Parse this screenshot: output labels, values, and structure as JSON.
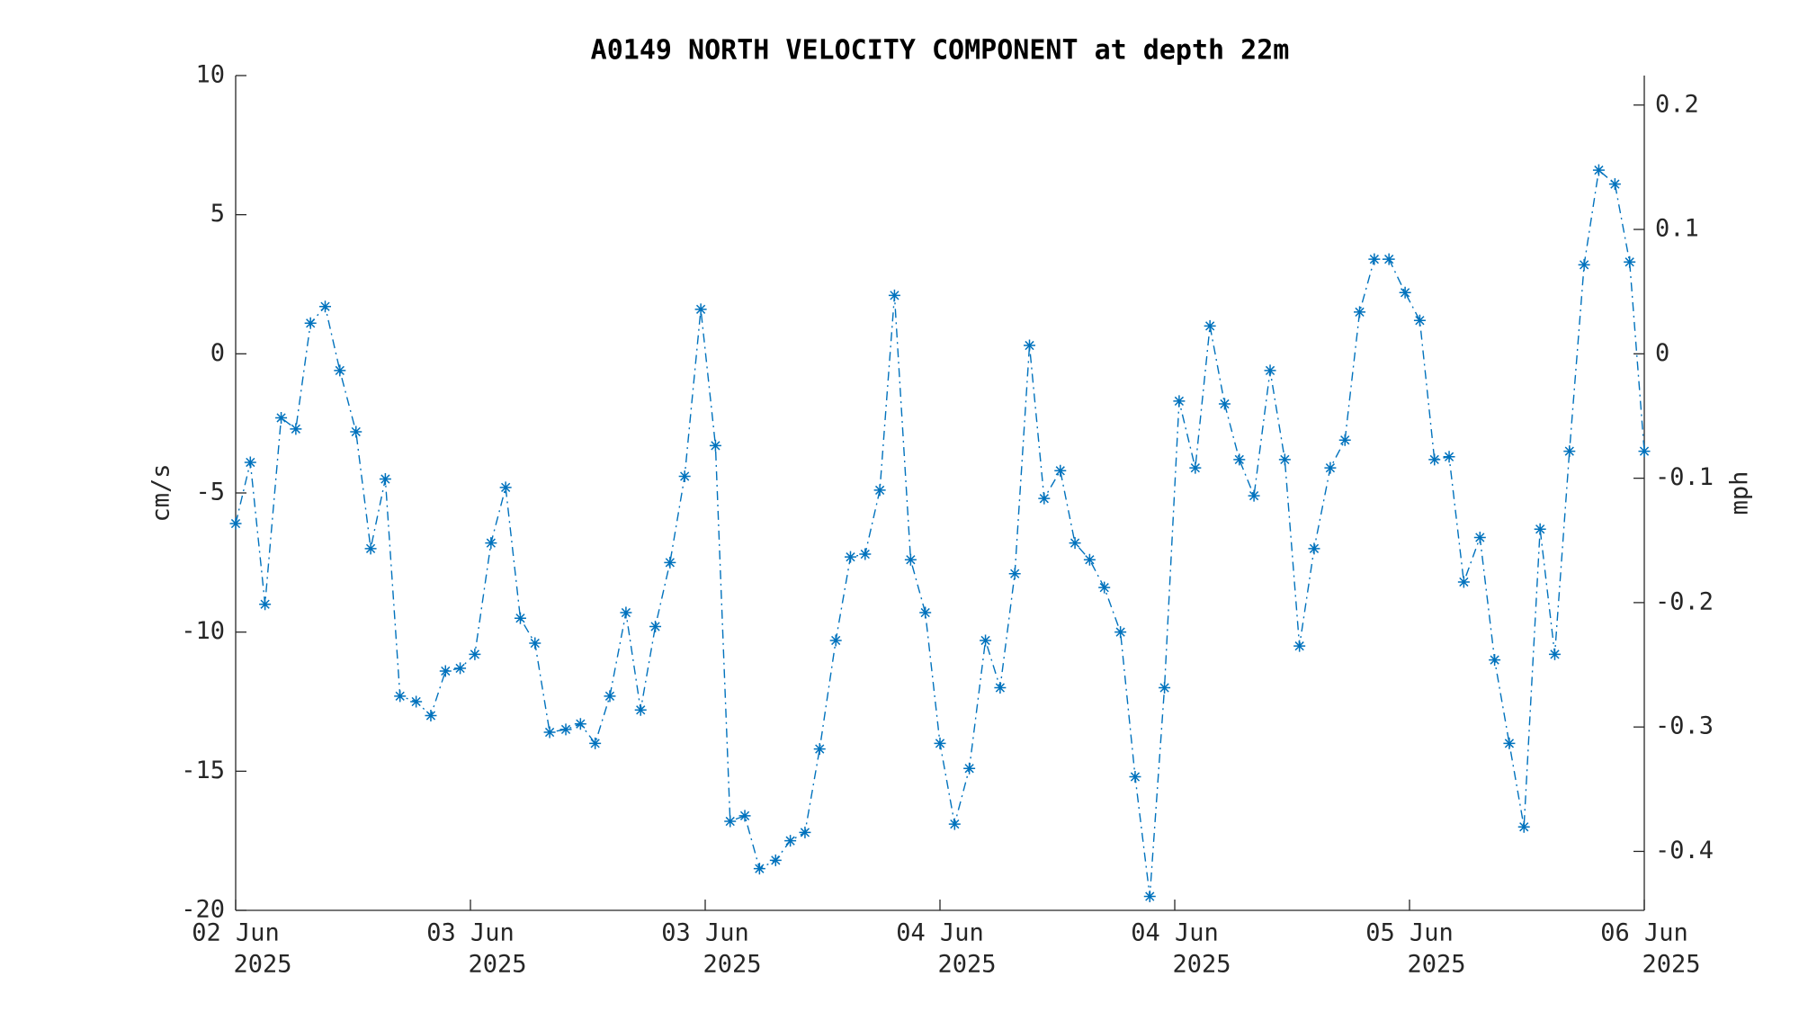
{
  "chart_data": {
    "type": "line",
    "title": "A0149 NORTH VELOCITY COMPONENT at depth 22m",
    "ylabel": "cm/s",
    "y2label": "mph",
    "xlim": [
      0,
      96
    ],
    "xticks": [
      {
        "value": 0,
        "label": [
          "02 Jun",
          "2025"
        ]
      },
      {
        "value": 16,
        "label": [
          "03 Jun",
          "2025"
        ]
      },
      {
        "value": 32,
        "label": [
          "03 Jun",
          "2025"
        ]
      },
      {
        "value": 48,
        "label": [
          "04 Jun",
          "2025"
        ]
      },
      {
        "value": 64,
        "label": [
          "04 Jun",
          "2025"
        ]
      },
      {
        "value": 80,
        "label": [
          "05 Jun",
          "2025"
        ]
      },
      {
        "value": 96,
        "label": [
          "06 Jun",
          "2025"
        ]
      }
    ],
    "ylim": [
      -20,
      10
    ],
    "yticks": [
      -20,
      -15,
      -10,
      -5,
      0,
      5,
      10
    ],
    "y2lim": [
      -0.4474,
      0.2237
    ],
    "y2ticks": [
      -0.4,
      -0.3,
      -0.2,
      -0.1,
      0,
      0.1,
      0.2
    ],
    "grid": false,
    "series": [
      {
        "color": "#0072bd",
        "x": [
          0,
          1.0,
          2.0,
          3.1,
          4.1,
          5.1,
          6.1,
          7.1,
          8.2,
          9.2,
          10.2,
          11.2,
          12.3,
          13.3,
          14.3,
          15.3,
          16.3,
          17.4,
          18.4,
          19.4,
          20.4,
          21.4,
          22.5,
          23.5,
          24.5,
          25.5,
          26.6,
          27.6,
          28.6,
          29.6,
          30.6,
          31.7,
          32.7,
          33.7,
          34.7,
          35.7,
          36.8,
          37.8,
          38.8,
          39.8,
          40.9,
          41.9,
          42.9,
          43.9,
          44.9,
          46.0,
          47.0,
          48.0,
          49.0,
          50.0,
          51.1,
          52.1,
          53.1,
          54.1,
          55.1,
          56.2,
          57.2,
          58.2,
          59.2,
          60.3,
          61.3,
          62.3,
          63.3,
          64.3,
          65.4,
          66.4,
          67.4,
          68.4,
          69.4,
          70.5,
          71.5,
          72.5,
          73.5,
          74.6,
          75.6,
          76.6,
          77.6,
          78.6,
          79.7,
          80.7,
          81.7,
          82.7,
          83.7,
          84.8,
          85.8,
          86.8,
          87.8,
          88.9,
          89.9,
          90.9,
          91.9,
          92.9,
          94.0,
          95.0,
          96.0
        ],
        "values": [
          -6.1,
          -3.9,
          -9.0,
          -2.3,
          -2.7,
          1.1,
          1.7,
          -0.6,
          -2.8,
          -7.0,
          -4.5,
          -12.3,
          -12.5,
          -13.0,
          -11.4,
          -11.3,
          -10.8,
          -6.8,
          -4.8,
          -9.5,
          -10.4,
          -13.6,
          -13.5,
          -13.3,
          -14.0,
          -12.3,
          -9.3,
          -12.8,
          -9.8,
          -7.5,
          -4.4,
          1.6,
          -3.3,
          -16.8,
          -16.6,
          -18.5,
          -18.2,
          -17.5,
          -17.2,
          -14.2,
          -10.3,
          -7.3,
          -7.2,
          -4.9,
          2.1,
          -7.4,
          -9.3,
          -14.0,
          -16.9,
          -14.9,
          -10.3,
          -12.0,
          -7.9,
          0.3,
          -5.2,
          -4.2,
          -6.8,
          -7.4,
          -8.4,
          -10.0,
          -15.2,
          -19.5,
          -12.0,
          -1.7,
          -4.1,
          1.0,
          -1.8,
          -3.8,
          -5.1,
          -0.6,
          -3.8,
          -10.5,
          -7.0,
          -4.1,
          -3.1,
          1.5,
          3.4,
          3.4,
          2.2,
          1.2,
          -3.8,
          -3.7,
          -8.2,
          -6.6,
          -11.0,
          -14.0,
          -17.0,
          -6.3,
          -10.8,
          -3.5,
          3.2,
          6.6,
          6.1,
          3.3,
          -3.5
        ]
      }
    ]
  }
}
